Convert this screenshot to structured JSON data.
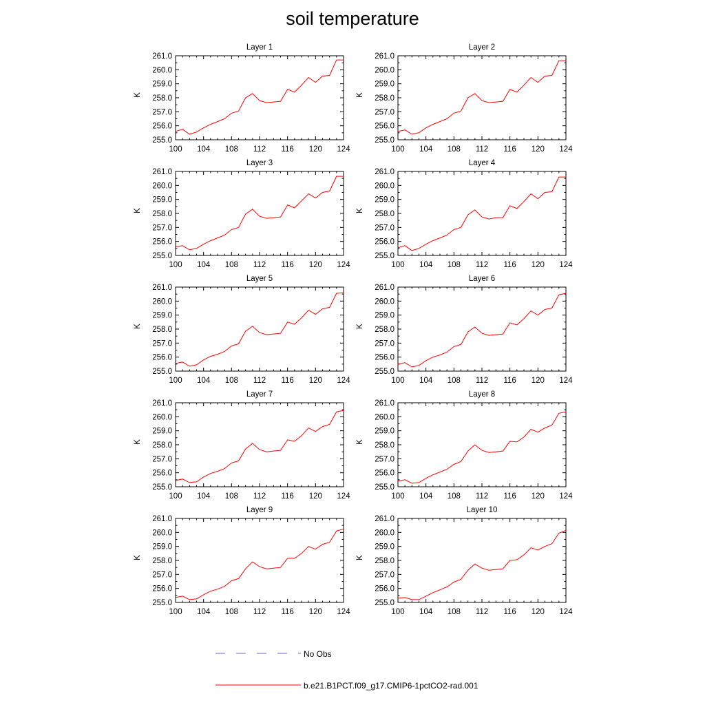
{
  "title": "soil temperature",
  "ylabel": "K",
  "legend": [
    {
      "label": "No Obs",
      "color": "#6b6bd6",
      "style": "dashed"
    },
    {
      "label": "b.e21.B1PCT.f09_g17.CMIP6-1pctCO2-rad.001",
      "color": "#ff0000",
      "style": "solid"
    }
  ],
  "chart_data": {
    "type": "line",
    "title": "soil temperature",
    "ylabel": "K",
    "xlim": [
      100,
      124
    ],
    "ylim": [
      255.0,
      261.0
    ],
    "xticks": [
      100,
      104,
      108,
      112,
      116,
      120,
      124
    ],
    "yticks": [
      "255.0",
      "256.0",
      "257.0",
      "258.0",
      "259.0",
      "260.0",
      "261.0"
    ],
    "x": [
      100,
      101,
      102,
      103,
      104,
      105,
      106,
      107,
      108,
      109,
      110,
      111,
      112,
      113,
      114,
      115,
      116,
      117,
      118,
      119,
      120,
      121,
      122,
      123,
      124
    ],
    "panels": [
      {
        "title": "Layer 1",
        "series": [
          {
            "name": "b.e21.B1PCT.f09_g17.CMIP6-1pctCO2-rad.001",
            "values": [
              255.6,
              255.75,
              255.4,
              255.55,
              255.85,
              256.1,
              256.3,
              256.5,
              256.9,
              257.05,
              258.0,
              258.3,
              257.8,
              257.65,
              257.7,
              257.75,
              258.6,
              258.4,
              258.9,
              259.45,
              259.1,
              259.55,
              259.6,
              260.7,
              260.7
            ]
          }
        ]
      },
      {
        "title": "Layer 2",
        "series": [
          {
            "name": "b.e21.B1PCT.f09_g17.CMIP6-1pctCO2-rad.001",
            "values": [
              255.6,
              255.7,
              255.4,
              255.5,
              255.85,
              256.1,
              256.3,
              256.5,
              256.9,
              257.05,
              258.0,
              258.3,
              257.8,
              257.65,
              257.7,
              257.75,
              258.6,
              258.4,
              258.9,
              259.45,
              259.1,
              259.55,
              259.6,
              260.65,
              260.65
            ]
          }
        ]
      },
      {
        "title": "Layer 3",
        "series": [
          {
            "name": "b.e21.B1PCT.f09_g17.CMIP6-1pctCO2-rad.001",
            "values": [
              255.6,
              255.7,
              255.4,
              255.5,
              255.8,
              256.05,
              256.25,
              256.45,
              256.85,
              257.0,
              257.95,
              258.3,
              257.8,
              257.65,
              257.7,
              257.75,
              258.6,
              258.4,
              258.9,
              259.4,
              259.1,
              259.5,
              259.6,
              260.65,
              260.65
            ]
          }
        ]
      },
      {
        "title": "Layer 4",
        "series": [
          {
            "name": "b.e21.B1PCT.f09_g17.CMIP6-1pctCO2-rad.001",
            "values": [
              255.55,
              255.7,
              255.35,
              255.5,
              255.8,
              256.05,
              256.25,
              256.45,
              256.85,
              257.0,
              257.9,
              258.25,
              257.75,
              257.6,
              257.7,
              257.7,
              258.55,
              258.35,
              258.85,
              259.4,
              259.05,
              259.5,
              259.55,
              260.6,
              260.6
            ]
          }
        ]
      },
      {
        "title": "Layer 5",
        "series": [
          {
            "name": "b.e21.B1PCT.f09_g17.CMIP6-1pctCO2-rad.001",
            "values": [
              255.55,
              255.65,
              255.35,
              255.45,
              255.8,
              256.05,
              256.2,
              256.4,
              256.8,
              256.95,
              257.85,
              258.2,
              257.75,
              257.6,
              257.65,
              257.7,
              258.5,
              258.35,
              258.8,
              259.35,
              259.05,
              259.45,
              259.55,
              260.55,
              260.6
            ]
          }
        ]
      },
      {
        "title": "Layer 6",
        "series": [
          {
            "name": "b.e21.B1PCT.f09_g17.CMIP6-1pctCO2-rad.001",
            "values": [
              255.5,
              255.6,
              255.3,
              255.4,
              255.75,
              256.0,
              256.15,
              256.35,
              256.75,
              256.9,
              257.8,
              258.15,
              257.7,
              257.55,
              257.6,
              257.65,
              258.45,
              258.3,
              258.75,
              259.3,
              259.0,
              259.4,
              259.5,
              260.45,
              260.55
            ]
          }
        ]
      },
      {
        "title": "Layer 7",
        "series": [
          {
            "name": "b.e21.B1PCT.f09_g17.CMIP6-1pctCO2-rad.001",
            "values": [
              255.45,
              255.55,
              255.3,
              255.35,
              255.7,
              255.95,
              256.1,
              256.3,
              256.7,
              256.85,
              257.7,
              258.1,
              257.65,
              257.5,
              257.55,
              257.6,
              258.35,
              258.25,
              258.65,
              259.2,
              258.95,
              259.3,
              259.45,
              260.35,
              260.45
            ]
          }
        ]
      },
      {
        "title": "Layer 8",
        "series": [
          {
            "name": "b.e21.B1PCT.f09_g17.CMIP6-1pctCO2-rad.001",
            "values": [
              255.4,
              255.5,
              255.25,
              255.3,
              255.6,
              255.85,
              256.05,
              256.25,
              256.6,
              256.8,
              257.55,
              258.0,
              257.6,
              257.45,
              257.5,
              257.55,
              258.25,
              258.2,
              258.55,
              259.1,
              258.9,
              259.2,
              259.4,
              260.25,
              260.35
            ]
          }
        ]
      },
      {
        "title": "Layer 9",
        "series": [
          {
            "name": "b.e21.B1PCT.f09_g17.CMIP6-1pctCO2-rad.001",
            "values": [
              255.35,
              255.45,
              255.2,
              255.25,
              255.55,
              255.8,
              255.95,
              256.15,
              256.55,
              256.7,
              257.4,
              257.9,
              257.55,
              257.4,
              257.45,
              257.5,
              258.15,
              258.15,
              258.5,
              259.0,
              258.8,
              259.15,
              259.3,
              260.1,
              260.25
            ]
          }
        ]
      },
      {
        "title": "Layer 10",
        "series": [
          {
            "name": "b.e21.B1PCT.f09_g17.CMIP6-1pctCO2-rad.001",
            "values": [
              255.3,
              255.35,
              255.2,
              255.2,
              255.45,
              255.7,
              255.9,
              256.1,
              256.45,
              256.65,
              257.3,
              257.75,
              257.45,
              257.3,
              257.35,
              257.4,
              258.0,
              258.05,
              258.4,
              258.9,
              258.75,
              259.0,
              259.2,
              259.95,
              260.15
            ]
          }
        ]
      }
    ]
  }
}
